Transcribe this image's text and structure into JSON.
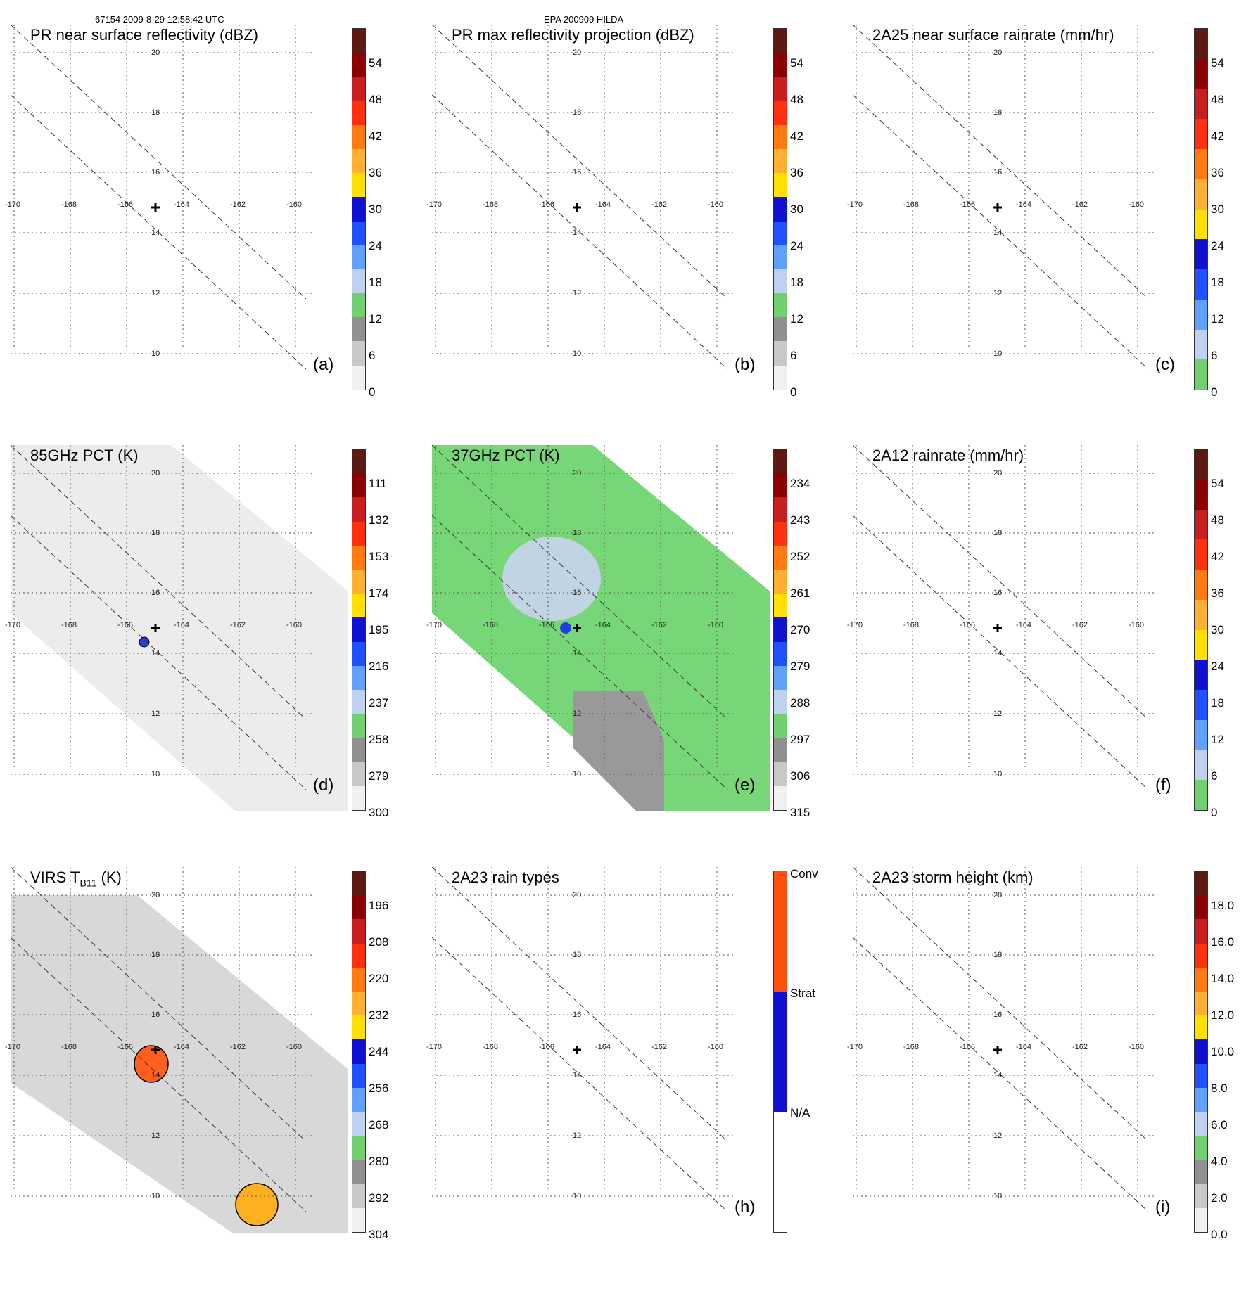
{
  "header": {
    "left": "67154 2009-8-29 12:58:42 UTC",
    "center": "EPA 200909 HILDA"
  },
  "lon_ticks": [
    "-170",
    "-168",
    "-166",
    "-164",
    "-162",
    "-160"
  ],
  "lat_ticks": [
    "20",
    "18",
    "16",
    "14",
    "12",
    "10"
  ],
  "panels": [
    {
      "id": "a",
      "title": "PR near surface reflectivity (dBZ)",
      "label": "(a)",
      "bg": "none",
      "colorbar": {
        "colors": [
          "#5c1a12",
          "#8b0000",
          "#c81e1e",
          "#ff3010",
          "#ff7a10",
          "#ffb030",
          "#ffe000",
          "#1010d0",
          "#2050ff",
          "#60a0ff",
          "#c0d0f0",
          "#70d070",
          "#909090",
          "#c8c8c8",
          "#f0f0f0"
        ],
        "ticks": [
          "54",
          "48",
          "42",
          "36",
          "30",
          "24",
          "18",
          "12",
          "6",
          "0"
        ]
      }
    },
    {
      "id": "b",
      "title": "PR max reflectivity projection (dBZ)",
      "label": "(b)",
      "bg": "none",
      "colorbar": {
        "colors": [
          "#5c1a12",
          "#8b0000",
          "#c81e1e",
          "#ff3010",
          "#ff7a10",
          "#ffb030",
          "#ffe000",
          "#1010d0",
          "#2050ff",
          "#60a0ff",
          "#c0d0f0",
          "#70d070",
          "#909090",
          "#c8c8c8",
          "#f0f0f0"
        ],
        "ticks": [
          "54",
          "48",
          "42",
          "36",
          "30",
          "24",
          "18",
          "12",
          "6",
          "0"
        ]
      }
    },
    {
      "id": "c",
      "title": "2A25 near surface rainrate (mm/hr)",
      "label": "(c)",
      "bg": "none",
      "colorbar": {
        "colors": [
          "#5c1a12",
          "#8b0000",
          "#c81e1e",
          "#ff3010",
          "#ff7a10",
          "#ffb030",
          "#ffe000",
          "#1010d0",
          "#2050ff",
          "#60a0ff",
          "#c0d0f0",
          "#70d070"
        ],
        "ticks": [
          "54",
          "48",
          "42",
          "36",
          "30",
          "24",
          "18",
          "12",
          "6",
          "0"
        ]
      }
    },
    {
      "id": "d",
      "title": "85GHz PCT (K)",
      "label": "(d)",
      "bg": "gray",
      "colorbar": {
        "colors": [
          "#5c1a12",
          "#8b0000",
          "#c81e1e",
          "#ff3010",
          "#ff7a10",
          "#ffb030",
          "#ffe000",
          "#1010d0",
          "#2050ff",
          "#60a0ff",
          "#c0d0f0",
          "#70d070",
          "#909090",
          "#c8c8c8",
          "#f0f0f0"
        ],
        "ticks": [
          "111",
          "132",
          "153",
          "174",
          "195",
          "216",
          "237",
          "258",
          "279",
          "300"
        ]
      }
    },
    {
      "id": "e",
      "title": "37GHz PCT (K)",
      "label": "(e)",
      "bg": "green",
      "colorbar": {
        "colors": [
          "#5c1a12",
          "#8b0000",
          "#c81e1e",
          "#ff3010",
          "#ff7a10",
          "#ffb030",
          "#ffe000",
          "#1010d0",
          "#2050ff",
          "#60a0ff",
          "#c0d0f0",
          "#70d070",
          "#909090",
          "#c8c8c8",
          "#f0f0f0"
        ],
        "ticks": [
          "234",
          "243",
          "252",
          "261",
          "270",
          "279",
          "288",
          "297",
          "306",
          "315"
        ]
      }
    },
    {
      "id": "f",
      "title": "2A12 rainrate (mm/hr)",
      "label": "(f)",
      "bg": "none",
      "colorbar": {
        "colors": [
          "#5c1a12",
          "#8b0000",
          "#c81e1e",
          "#ff3010",
          "#ff7a10",
          "#ffb030",
          "#ffe000",
          "#1010d0",
          "#2050ff",
          "#60a0ff",
          "#c0d0f0",
          "#70d070"
        ],
        "ticks": [
          "54",
          "48",
          "42",
          "36",
          "30",
          "24",
          "18",
          "12",
          "6",
          "0"
        ]
      }
    },
    {
      "id": "g",
      "title": "VIRS T",
      "title_sub": "B11",
      "title_end": " (K)",
      "label": "",
      "bg": "lightgray",
      "colorbar": {
        "colors": [
          "#5c1a12",
          "#8b0000",
          "#c81e1e",
          "#ff3010",
          "#ff7a10",
          "#ffb030",
          "#ffe000",
          "#1010d0",
          "#2050ff",
          "#60a0ff",
          "#c0d0f0",
          "#70d070",
          "#909090",
          "#c8c8c8",
          "#f0f0f0"
        ],
        "ticks": [
          "196",
          "208",
          "220",
          "232",
          "244",
          "256",
          "268",
          "280",
          "292",
          "304"
        ]
      }
    },
    {
      "id": "h",
      "title": "2A23 rain types",
      "label": "(h)",
      "bg": "none",
      "colorbar": {
        "colors": [
          "#ff5010",
          "#1010d0",
          "#ffffff"
        ],
        "ticks": [
          "Conv",
          "Strat",
          "N/A"
        ]
      }
    },
    {
      "id": "i",
      "title": "2A23 storm height (km)",
      "label": "(i)",
      "bg": "none",
      "colorbar": {
        "colors": [
          "#5c1a12",
          "#8b0000",
          "#c81e1e",
          "#ff3010",
          "#ff7a10",
          "#ffb030",
          "#ffe000",
          "#1010d0",
          "#2050ff",
          "#60a0ff",
          "#c0d0f0",
          "#70d070",
          "#909090",
          "#c8c8c8",
          "#f0f0f0"
        ],
        "ticks": [
          "18.0",
          "16.0",
          "14.0",
          "12.0",
          "10.0",
          "8.0",
          "6.0",
          "4.0",
          "2.0",
          "0.0"
        ]
      }
    }
  ]
}
